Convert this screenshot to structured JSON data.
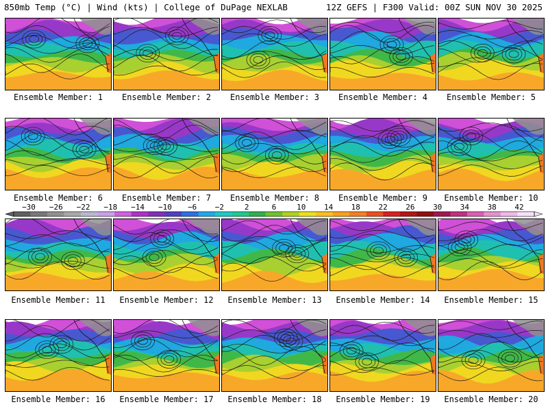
{
  "header": {
    "left": "850mb Temp (°C) | Wind (kts) | College of DuPage NEXLAB",
    "right": "12Z GEFS | F300 Valid: 00Z SUN NOV 30 2025"
  },
  "panels": [
    {
      "member": 1,
      "label": "Ensemble Member: 1"
    },
    {
      "member": 2,
      "label": "Ensemble Member: 2"
    },
    {
      "member": 3,
      "label": "Ensemble Member: 3"
    },
    {
      "member": 4,
      "label": "Ensemble Member: 4"
    },
    {
      "member": 5,
      "label": "Ensemble Member: 5"
    },
    {
      "member": 6,
      "label": "Ensemble Member: 6"
    },
    {
      "member": 7,
      "label": "Ensemble Member: 7"
    },
    {
      "member": 8,
      "label": "Ensemble Member: 8"
    },
    {
      "member": 9,
      "label": "Ensemble Member: 9"
    },
    {
      "member": 10,
      "label": "Ensemble Member: 10"
    },
    {
      "member": 11,
      "label": "Ensemble Member: 11"
    },
    {
      "member": 12,
      "label": "Ensemble Member: 12"
    },
    {
      "member": 13,
      "label": "Ensemble Member: 13"
    },
    {
      "member": 14,
      "label": "Ensemble Member: 14"
    },
    {
      "member": 15,
      "label": "Ensemble Member: 15"
    },
    {
      "member": 16,
      "label": "Ensemble Member: 16"
    },
    {
      "member": 17,
      "label": "Ensemble Member: 17"
    },
    {
      "member": 18,
      "label": "Ensemble Member: 18"
    },
    {
      "member": 19,
      "label": "Ensemble Member: 19"
    },
    {
      "member": 20,
      "label": "Ensemble Member: 20"
    }
  ],
  "colorbar": {
    "ticks": [
      "-30",
      "-26",
      "-22",
      "-18",
      "-14",
      "-10",
      "-6",
      "-2",
      "2",
      "6",
      "10",
      "14",
      "18",
      "22",
      "26",
      "30",
      "34",
      "38",
      "42"
    ],
    "colors": [
      "#606060",
      "#787878",
      "#909090",
      "#a8a8a8",
      "#b8b8d0",
      "#c8a0e8",
      "#d060e0",
      "#b030c8",
      "#8030b8",
      "#5040c0",
      "#3070e0",
      "#20a8e8",
      "#20c8c8",
      "#20c890",
      "#30b050",
      "#70c030",
      "#b0d020",
      "#e8e020",
      "#f8c020",
      "#f8a020",
      "#f08020",
      "#e85020",
      "#d82020",
      "#b01818",
      "#901010",
      "#a01850",
      "#c03080",
      "#d860b0",
      "#e890d0",
      "#f0b8e8",
      "#f8e0f8"
    ]
  },
  "colors": {
    "ocean": "#f8a828",
    "land_warm": "#f07820",
    "cold_land": "#909090"
  }
}
